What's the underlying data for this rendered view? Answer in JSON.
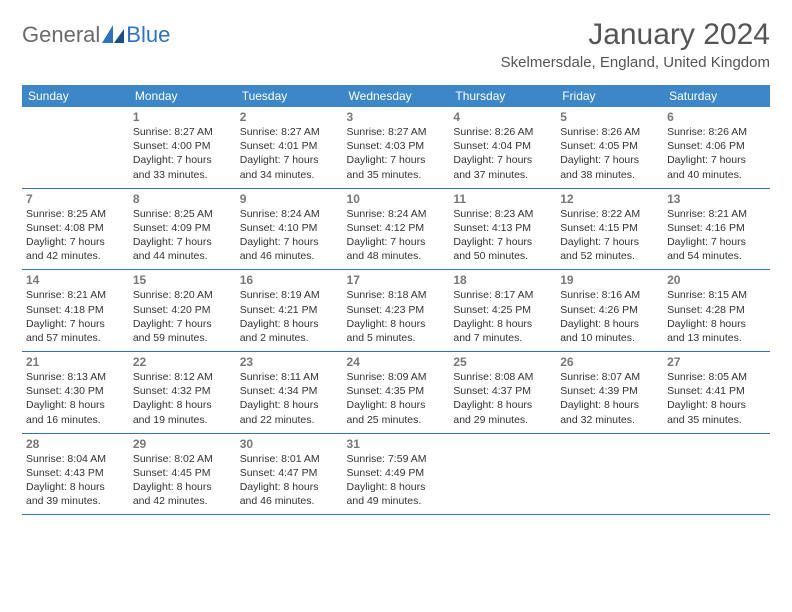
{
  "logo": {
    "text1": "General",
    "text2": "Blue"
  },
  "title": "January 2024",
  "location": "Skelmersdale, England, United Kingdom",
  "colors": {
    "header_bg": "#3b87c8",
    "header_fg": "#ffffff",
    "rule": "#2f72c4",
    "logo_gray": "#6b6b6b",
    "logo_blue": "#2f72c4",
    "text": "#333333",
    "daynum": "#777777",
    "title_color": "#555555"
  },
  "day_headers": [
    "Sunday",
    "Monday",
    "Tuesday",
    "Wednesday",
    "Thursday",
    "Friday",
    "Saturday"
  ],
  "start_offset": 1,
  "days": [
    {
      "n": 1,
      "sunrise": "8:27 AM",
      "sunset": "4:00 PM",
      "daylight": "7 hours and 33 minutes."
    },
    {
      "n": 2,
      "sunrise": "8:27 AM",
      "sunset": "4:01 PM",
      "daylight": "7 hours and 34 minutes."
    },
    {
      "n": 3,
      "sunrise": "8:27 AM",
      "sunset": "4:03 PM",
      "daylight": "7 hours and 35 minutes."
    },
    {
      "n": 4,
      "sunrise": "8:26 AM",
      "sunset": "4:04 PM",
      "daylight": "7 hours and 37 minutes."
    },
    {
      "n": 5,
      "sunrise": "8:26 AM",
      "sunset": "4:05 PM",
      "daylight": "7 hours and 38 minutes."
    },
    {
      "n": 6,
      "sunrise": "8:26 AM",
      "sunset": "4:06 PM",
      "daylight": "7 hours and 40 minutes."
    },
    {
      "n": 7,
      "sunrise": "8:25 AM",
      "sunset": "4:08 PM",
      "daylight": "7 hours and 42 minutes."
    },
    {
      "n": 8,
      "sunrise": "8:25 AM",
      "sunset": "4:09 PM",
      "daylight": "7 hours and 44 minutes."
    },
    {
      "n": 9,
      "sunrise": "8:24 AM",
      "sunset": "4:10 PM",
      "daylight": "7 hours and 46 minutes."
    },
    {
      "n": 10,
      "sunrise": "8:24 AM",
      "sunset": "4:12 PM",
      "daylight": "7 hours and 48 minutes."
    },
    {
      "n": 11,
      "sunrise": "8:23 AM",
      "sunset": "4:13 PM",
      "daylight": "7 hours and 50 minutes."
    },
    {
      "n": 12,
      "sunrise": "8:22 AM",
      "sunset": "4:15 PM",
      "daylight": "7 hours and 52 minutes."
    },
    {
      "n": 13,
      "sunrise": "8:21 AM",
      "sunset": "4:16 PM",
      "daylight": "7 hours and 54 minutes."
    },
    {
      "n": 14,
      "sunrise": "8:21 AM",
      "sunset": "4:18 PM",
      "daylight": "7 hours and 57 minutes."
    },
    {
      "n": 15,
      "sunrise": "8:20 AM",
      "sunset": "4:20 PM",
      "daylight": "7 hours and 59 minutes."
    },
    {
      "n": 16,
      "sunrise": "8:19 AM",
      "sunset": "4:21 PM",
      "daylight": "8 hours and 2 minutes."
    },
    {
      "n": 17,
      "sunrise": "8:18 AM",
      "sunset": "4:23 PM",
      "daylight": "8 hours and 5 minutes."
    },
    {
      "n": 18,
      "sunrise": "8:17 AM",
      "sunset": "4:25 PM",
      "daylight": "8 hours and 7 minutes."
    },
    {
      "n": 19,
      "sunrise": "8:16 AM",
      "sunset": "4:26 PM",
      "daylight": "8 hours and 10 minutes."
    },
    {
      "n": 20,
      "sunrise": "8:15 AM",
      "sunset": "4:28 PM",
      "daylight": "8 hours and 13 minutes."
    },
    {
      "n": 21,
      "sunrise": "8:13 AM",
      "sunset": "4:30 PM",
      "daylight": "8 hours and 16 minutes."
    },
    {
      "n": 22,
      "sunrise": "8:12 AM",
      "sunset": "4:32 PM",
      "daylight": "8 hours and 19 minutes."
    },
    {
      "n": 23,
      "sunrise": "8:11 AM",
      "sunset": "4:34 PM",
      "daylight": "8 hours and 22 minutes."
    },
    {
      "n": 24,
      "sunrise": "8:09 AM",
      "sunset": "4:35 PM",
      "daylight": "8 hours and 25 minutes."
    },
    {
      "n": 25,
      "sunrise": "8:08 AM",
      "sunset": "4:37 PM",
      "daylight": "8 hours and 29 minutes."
    },
    {
      "n": 26,
      "sunrise": "8:07 AM",
      "sunset": "4:39 PM",
      "daylight": "8 hours and 32 minutes."
    },
    {
      "n": 27,
      "sunrise": "8:05 AM",
      "sunset": "4:41 PM",
      "daylight": "8 hours and 35 minutes."
    },
    {
      "n": 28,
      "sunrise": "8:04 AM",
      "sunset": "4:43 PM",
      "daylight": "8 hours and 39 minutes."
    },
    {
      "n": 29,
      "sunrise": "8:02 AM",
      "sunset": "4:45 PM",
      "daylight": "8 hours and 42 minutes."
    },
    {
      "n": 30,
      "sunrise": "8:01 AM",
      "sunset": "4:47 PM",
      "daylight": "8 hours and 46 minutes."
    },
    {
      "n": 31,
      "sunrise": "7:59 AM",
      "sunset": "4:49 PM",
      "daylight": "8 hours and 49 minutes."
    }
  ],
  "labels": {
    "sunrise": "Sunrise:",
    "sunset": "Sunset:",
    "daylight": "Daylight:"
  }
}
